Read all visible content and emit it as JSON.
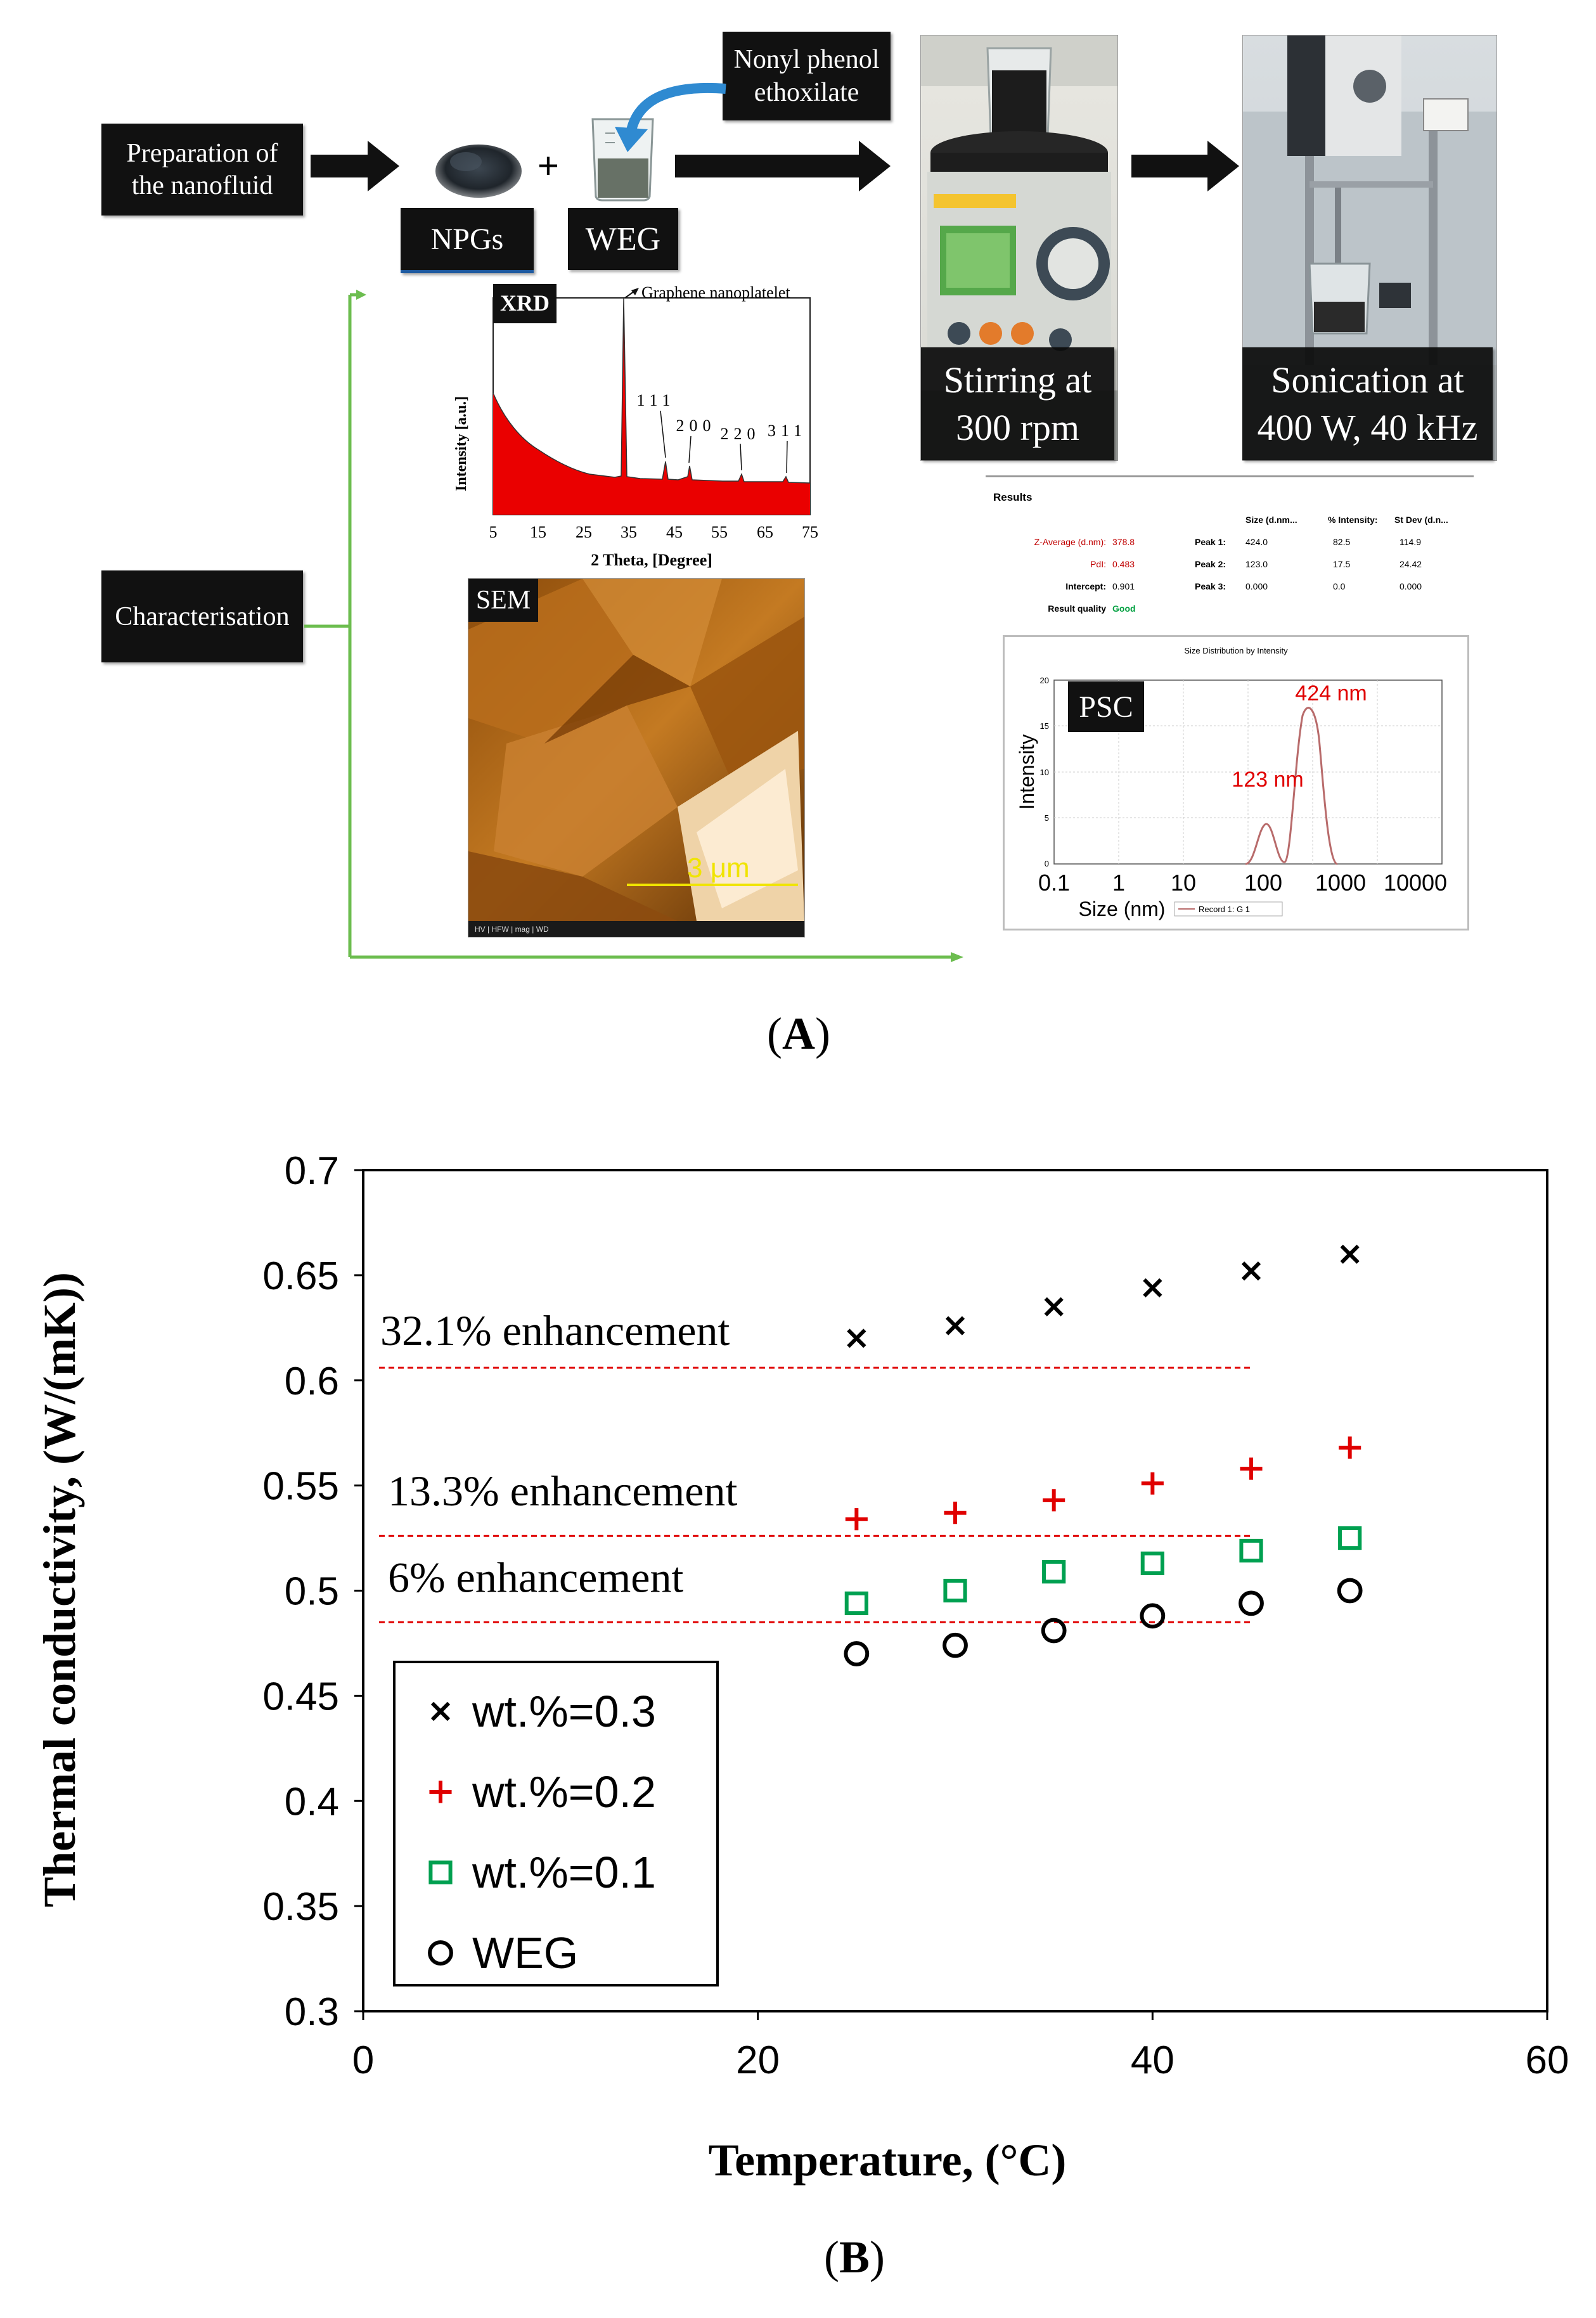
{
  "panel_a": {
    "label": "A",
    "process": {
      "preparation_label": "Preparation of the nanofluid",
      "npgs_label": "NPGs",
      "plus_sign": "+",
      "weg_label": "WEG",
      "surfactant_label": "Nonyl phenol ethoxilate",
      "stirring_label": "Stirring at 300 rpm",
      "sonication_label": "Sonication at 400 W, 40 kHz"
    },
    "characterisation_label": "Characterisation",
    "xrd": {
      "tag": "XRD",
      "peak_annotation": "Graphene nanoplatelet",
      "ylabel": "Intensity [a.u.]",
      "xlabel": "2 Theta, [Degree]",
      "x_ticks": [
        "5",
        "15",
        "25",
        "35",
        "45",
        "55",
        "65",
        "75"
      ],
      "peak_labels": [
        "111",
        "200",
        "220",
        "311"
      ]
    },
    "sem": {
      "tag": "SEM",
      "scale_bar": "3 μm",
      "footer": "HV | HFW | mag | WD"
    },
    "dls": {
      "results_title": "Results",
      "col_headers": [
        "Size (d.nm...",
        "% Intensity:",
        "St Dev (d.n..."
      ],
      "rows": [
        {
          "label": "Z-Average (d.nm):",
          "value": "378.8",
          "peak": "Peak 1:",
          "size": "424.0",
          "intensity": "82.5",
          "stdev": "114.9"
        },
        {
          "label": "PdI:",
          "value": "0.483",
          "peak": "Peak 2:",
          "size": "123.0",
          "intensity": "17.5",
          "stdev": "24.42"
        },
        {
          "label": "Intercept:",
          "value": "0.901",
          "peak": "Peak 3:",
          "size": "0.000",
          "intensity": "0.0",
          "stdev": "0.000"
        }
      ],
      "quality_label": "Result quality",
      "quality_value": "Good",
      "plot_title": "Size Distribution by Intensity",
      "tag": "PSC",
      "ylabel": "Intensity",
      "xlabel": "Size (nm)",
      "x_ticks": [
        "0.1",
        "1",
        "10",
        "100",
        "1000",
        "10000"
      ],
      "y_ticks": [
        "20",
        "15",
        "10",
        "5",
        "0"
      ],
      "peak1_label": "424 nm",
      "peak2_label": "123 nm",
      "legend": "Record 1: G 1"
    }
  },
  "panel_b_label": "B",
  "chart_data": {
    "type": "scatter",
    "xlabel": "Temperature, (°C)",
    "ylabel": "Thermal conductivity, (W/(mK))",
    "xlim": [
      0,
      60
    ],
    "ylim": [
      0.3,
      0.7
    ],
    "x_ticks": [
      "0",
      "20",
      "40",
      "60"
    ],
    "y_ticks": [
      "0.7",
      "0.65",
      "0.6",
      "0.55",
      "0.5",
      "0.45",
      "0.4",
      "0.35",
      "0.3"
    ],
    "x": [
      25,
      30,
      35,
      40,
      45,
      50
    ],
    "series": [
      {
        "name": "wt.%=0.3",
        "marker": "x",
        "color": "#000000",
        "values": [
          0.62,
          0.626,
          0.635,
          0.644,
          0.652,
          0.66
        ]
      },
      {
        "name": "wt.%=0.2",
        "marker": "+",
        "color": "#e00000",
        "values": [
          0.534,
          0.537,
          0.543,
          0.551,
          0.558,
          0.568
        ]
      },
      {
        "name": "wt.%=0.1",
        "marker": "square",
        "color": "#00a050",
        "values": [
          0.494,
          0.5,
          0.509,
          0.513,
          0.519,
          0.525
        ]
      },
      {
        "name": "WEG",
        "marker": "circle",
        "color": "#000000",
        "values": [
          0.47,
          0.474,
          0.481,
          0.488,
          0.494,
          0.5
        ]
      }
    ],
    "annotations": [
      {
        "text": "32.1% enhancement",
        "line_y": 0.606,
        "line_x": [
          0,
          45
        ]
      },
      {
        "text": "13.3% enhancement",
        "line_y": 0.526,
        "line_x": [
          0,
          45
        ]
      },
      {
        "text": "6% enhancement",
        "line_y": 0.485,
        "line_x": [
          0,
          45
        ]
      }
    ],
    "guide_color": "#e00000",
    "legend_position": "bottom-left",
    "grid": false
  }
}
